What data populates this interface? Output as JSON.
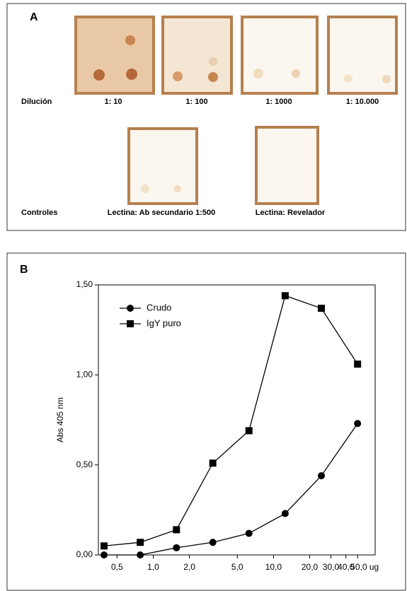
{
  "panel_a": {
    "label": "A",
    "row_label": "Dilución",
    "dilutions": [
      "1: 10",
      "1: 100",
      "1: 1000",
      "1: 10.000"
    ],
    "controls_label": "Controles",
    "controls": [
      "Lectina: Ab secundario 1:500",
      "Lectina: Revelador"
    ]
  },
  "chart_data": {
    "type": "line",
    "panel_label": "B",
    "ylabel": "Abs 405 nm",
    "log_scale_x": true,
    "x": [
      0.39,
      0.78,
      1.56,
      3.13,
      6.25,
      12.5,
      25,
      50
    ],
    "series": [
      {
        "name": "Crudo",
        "color": "#000000",
        "marker": "circle",
        "values": [
          0.0,
          0.0,
          0.04,
          0.07,
          0.12,
          0.23,
          0.44,
          0.73
        ]
      },
      {
        "name": "IgY puro",
        "color": "#000000",
        "marker": "square",
        "values": [
          0.05,
          0.07,
          0.14,
          0.51,
          0.69,
          1.44,
          1.37,
          1.06
        ]
      }
    ],
    "xlim": [
      0.35,
      70
    ],
    "ylim": [
      0,
      1.5
    ],
    "xticks": [
      {
        "value": 0.5,
        "label": "0,5"
      },
      {
        "value": 1,
        "label": "1,0"
      },
      {
        "value": 2,
        "label": "2,0"
      },
      {
        "value": 5,
        "label": "5,0"
      },
      {
        "value": 10,
        "label": "10,0"
      },
      {
        "value": 20,
        "label": "20,0"
      },
      {
        "value": 30,
        "label": "30,0"
      },
      {
        "value": 40,
        "label": "40,0"
      },
      {
        "value": 50,
        "label": "50,0 ug"
      }
    ],
    "yticks": [
      {
        "value": 0,
        "label": "0,00"
      },
      {
        "value": 0.5,
        "label": "0,50"
      },
      {
        "value": 1,
        "label": "1,00"
      },
      {
        "value": 1.5,
        "label": "1,50"
      }
    ],
    "legend": "upper-left"
  }
}
